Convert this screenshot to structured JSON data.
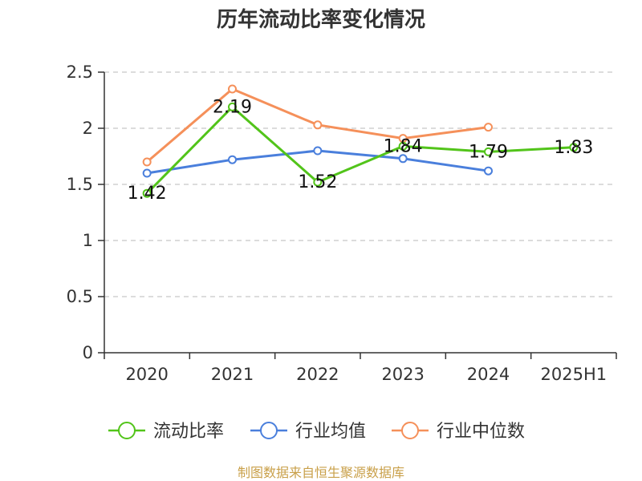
{
  "chart_data": {
    "type": "line",
    "title": "历年流动比率变化情况",
    "categories": [
      "2020",
      "2021",
      "2022",
      "2023",
      "2024",
      "2025H1"
    ],
    "ylim": [
      0,
      2.5
    ],
    "yticks": [
      "0",
      "0.5",
      "1",
      "1.5",
      "2",
      "2.5"
    ],
    "ytick_values": [
      0,
      0.5,
      1,
      1.5,
      2,
      2.5
    ],
    "grid": true,
    "legend_position": "bottom",
    "series": [
      {
        "name": "流动比率",
        "color": "#52c41a",
        "values": [
          1.42,
          2.19,
          1.52,
          1.84,
          1.79,
          1.83
        ],
        "labels": [
          "1.42",
          "2.19",
          "1.52",
          "1.84",
          "1.79",
          "1.83"
        ]
      },
      {
        "name": "行业均值",
        "color": "#4a7fdc",
        "values": [
          1.6,
          1.72,
          1.8,
          1.73,
          1.62,
          null
        ]
      },
      {
        "name": "行业中位数",
        "color": "#f5905a",
        "values": [
          1.7,
          2.35,
          2.03,
          1.91,
          2.01,
          null
        ]
      }
    ]
  },
  "footer": {
    "source": "制图数据来自恒生聚源数据库"
  }
}
